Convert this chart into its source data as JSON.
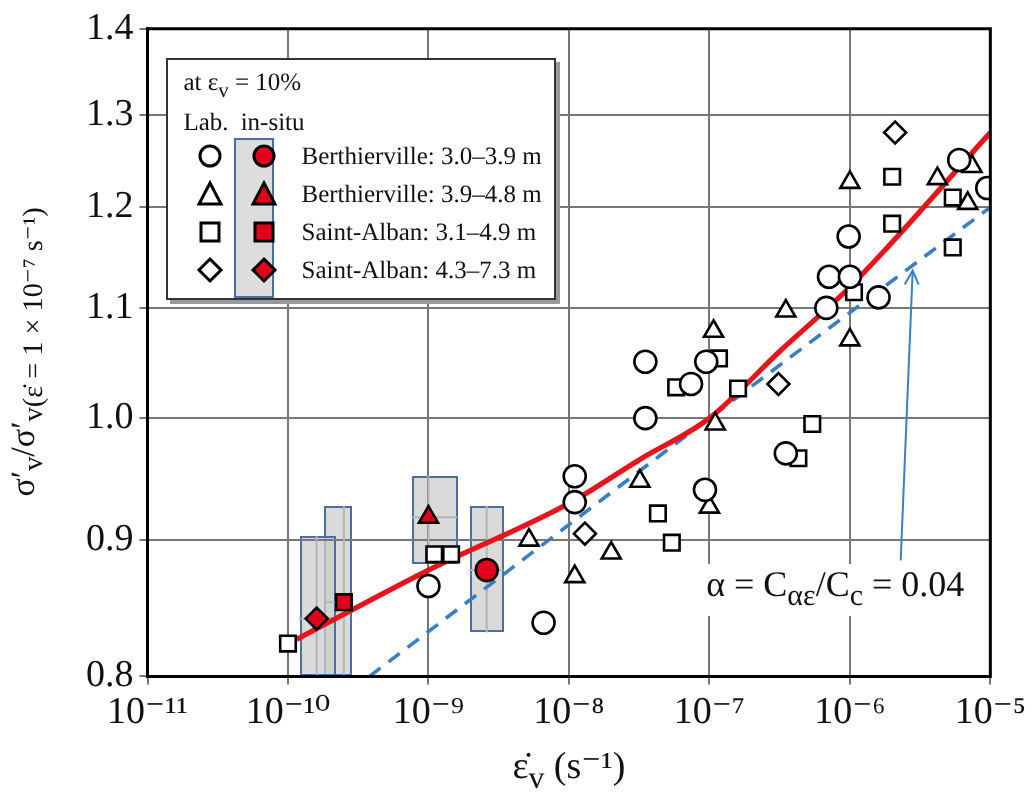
{
  "chart_data": {
    "type": "scatter",
    "xlabel": "ε̇$_{v}$ (s⁻¹)",
    "ylabel": "σ′$_{v}$/σ′$_{v(ε̇ = 1 × 10⁻⁷ s⁻¹)}$",
    "legend_title": "at ε$_{v}$ = 10%",
    "annotations": [
      "Lab.",
      "in-situ",
      {
        "text": "α = C$_{αε}$/C$_{c}$ = 0.04",
        "x": 2.8e-06,
        "y": 1.14
      }
    ],
    "log": "xy",
    "grid": true,
    "legend": "top left",
    "xlim": [
      1e-11,
      1e-05
    ],
    "xticks": [
      {
        "value": 1e-11,
        "label": "10⁻¹¹"
      },
      {
        "value": 1e-10,
        "label": "10⁻¹⁰"
      },
      {
        "value": 1e-09,
        "label": "10⁻⁹"
      },
      {
        "value": 1e-08,
        "label": "10⁻⁸"
      },
      {
        "value": 1e-07,
        "label": "10⁻⁷"
      },
      {
        "value": 1e-06,
        "label": "10⁻⁶"
      },
      {
        "value": 1e-05,
        "label": "10⁻⁵"
      }
    ],
    "ylim": [
      0.8,
      1.4
    ],
    "yticks": [
      0.8,
      0.9,
      {
        "value": 1,
        "label": "1.0"
      },
      1.1,
      1.2,
      1.3,
      1.4
    ],
    "series": [
      {
        "marker": "circle",
        "color": "#000000",
        "x": [
          1e-09,
          6.6e-09,
          1.1e-08,
          1.1e-08,
          3.5e-08,
          3.5e-08,
          7.4e-08,
          9.5e-08,
          9.3e-08,
          3.5e-07,
          6.8e-07,
          7.1e-07,
          9.8e-07,
          1e-06,
          1.6e-06,
          6e-06,
          9.5e-06
        ],
        "values": [
          0.865,
          0.838,
          0.951,
          0.93,
          1.0,
          1.05,
          1.03,
          1.05,
          0.94,
          0.97,
          1.1,
          1.13,
          1.17,
          1.13,
          1.11,
          1.25,
          1.22
        ]
      },
      {
        "marker": "triangle",
        "color": "#000000",
        "x": [
          5.2e-09,
          1.1e-08,
          2e-08,
          3.2e-08,
          1e-07,
          1.1e-07,
          1.07e-07,
          3.5e-07,
          1e-06,
          1e-06,
          4.2e-06,
          7.4e-06,
          6.9e-06
        ],
        "values": [
          0.9,
          0.872,
          0.89,
          0.947,
          0.926,
          0.995,
          1.078,
          1.097,
          1.07,
          1.226,
          1.23,
          1.243,
          1.204
        ]
      },
      {
        "marker": "square",
        "color": "#000000",
        "x": [
          1e-10,
          1.1e-09,
          1.45e-09,
          4.3e-08,
          5.4e-08,
          5.8e-08,
          1.17e-07,
          1.6e-07,
          4.3e-07,
          5.4e-07,
          1.07e-06,
          2e-06,
          2e-06,
          5.4e-06,
          5.4e-06
        ],
        "values": [
          0.823,
          0.889,
          0.889,
          0.921,
          0.898,
          1.027,
          1.053,
          1.026,
          0.966,
          0.995,
          1.115,
          1.232,
          1.183,
          1.21,
          1.159
        ]
      },
      {
        "marker": "diamond",
        "color": "#000000",
        "x": [
          1.3e-08,
          3.1e-07,
          2.1e-06
        ],
        "values": [
          0.905,
          1.03,
          1.28
        ]
      },
      {
        "name": "Berthierville: 3.0–3.9 m",
        "marker": "circle",
        "color": "#e3001b",
        "x": [
          2.6e-09
        ],
        "values": [
          0.877
        ],
        "errors": [
          [
            0.831,
            0.927
          ]
        ],
        "xerrors": [
          [
            1.95e-09,
            3.4e-09
          ]
        ]
      },
      {
        "name": "Berthierville: 3.9–4.8 m",
        "marker": "triangle",
        "color": "#e3001b",
        "x": [
          1e-09
        ],
        "values": [
          0.918
        ],
        "errors": [
          [
            0.882,
            0.951
          ]
        ],
        "xerrors": [
          [
            7.6e-10,
            1.6e-09
          ]
        ]
      },
      {
        "name": "Saint-Alban: 3.1–4.9 m",
        "marker": "square",
        "color": "#e3001b",
        "x": [
          2.5e-10
        ],
        "values": [
          0.853
        ],
        "errors": [
          [
            0.8,
            0.927
          ]
        ],
        "xerrors": [
          [
            1.8e-10,
            2.9e-10
          ]
        ]
      },
      {
        "name": "Saint-Alban: 4.3–7.3 m",
        "marker": "diamond",
        "color": "#e3001b",
        "x": [
          1.6e-10
        ],
        "values": [
          0.841
        ],
        "errors": [
          [
            0.8,
            0.903
          ]
        ],
        "xerrors": [
          [
            1.2e-10,
            2.2e-10
          ]
        ]
      },
      {
        "type": "line",
        "marker": "none",
        "line_style": "solid",
        "color": "#e8141c",
        "x": [
          1.15e-10,
          1e-09,
          1e-08,
          3.2e-08,
          1e-07,
          3.2e-07,
          1e-06,
          1e-05
        ],
        "values": [
          0.826,
          0.877,
          0.929,
          0.965,
          1.0,
          1.06,
          1.12,
          1.28
        ]
      },
      {
        "type": "line",
        "marker": "none",
        "line_style": "dashed",
        "color": "#3a7fc4",
        "x": [
          3.8e-10,
          1e-07,
          1e-05
        ],
        "values": [
          0.8,
          1.0,
          1.2
        ]
      }
    ]
  }
}
